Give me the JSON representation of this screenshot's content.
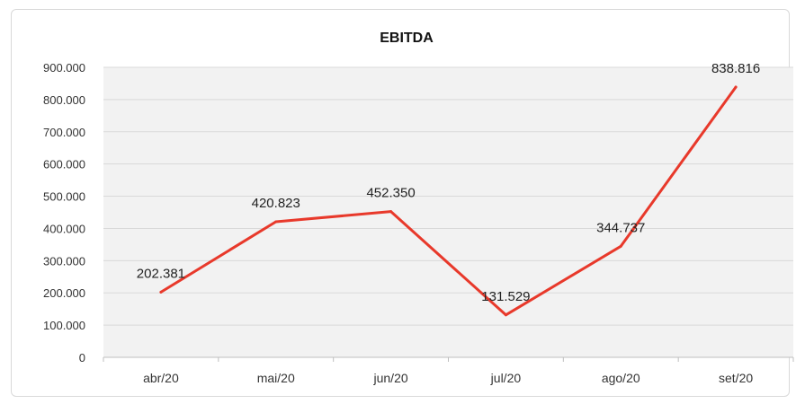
{
  "chart_data": {
    "type": "line",
    "title": "EBITDA",
    "xlabel": "",
    "ylabel": "",
    "categories": [
      "abr/20",
      "mai/20",
      "jun/20",
      "jul/20",
      "ago/20",
      "set/20"
    ],
    "series": [
      {
        "values": [
          202381,
          420823,
          452350,
          131529,
          344737,
          838816
        ],
        "labels": [
          "202.381",
          "420.823",
          "452.350",
          "131.529",
          "344.737",
          "838.816"
        ],
        "color": "#e8392b"
      }
    ],
    "ylim": [
      0,
      900000
    ],
    "yticks": [
      0,
      100000,
      200000,
      300000,
      400000,
      500000,
      600000,
      700000,
      800000,
      900000
    ],
    "ytick_labels": [
      "0",
      "100.000",
      "200.000",
      "300.000",
      "400.000",
      "500.000",
      "600.000",
      "700.000",
      "800.000",
      "900.000"
    ],
    "grid": true,
    "legend": "none",
    "plot_background": "#f2f2f2",
    "gridline_color": "#d9d9d9"
  }
}
